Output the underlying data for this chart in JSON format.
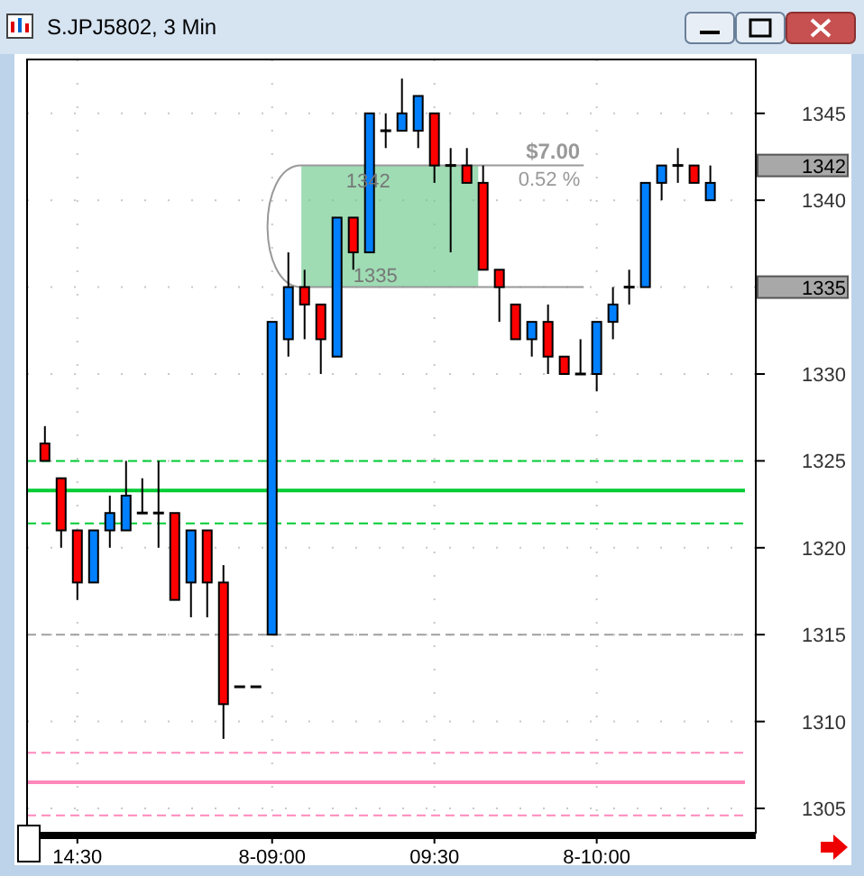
{
  "chart_data": {
    "type": "candlestick",
    "title": "S.JPJ5802, 3 Min",
    "categories": [
      null,
      null,
      "14:30",
      null,
      null,
      null,
      null,
      null,
      null,
      null,
      null,
      null,
      null,
      null,
      "8-09:00",
      null,
      null,
      null,
      null,
      null,
      null,
      null,
      null,
      null,
      "09:30",
      null,
      null,
      null,
      null,
      null,
      null,
      null,
      null,
      null,
      "8-10:00",
      null,
      null,
      null,
      null,
      null,
      null,
      null
    ],
    "ohlc": [
      [
        1326,
        1327,
        1325,
        1325
      ],
      [
        1324,
        1324,
        1320,
        1321
      ],
      [
        1321,
        1321,
        1317,
        1318
      ],
      [
        1318,
        1321,
        1318,
        1321
      ],
      [
        1321,
        1323,
        1320,
        1322
      ],
      [
        1321,
        1325,
        1321,
        1323
      ],
      [
        1322,
        1324,
        1322,
        1322
      ],
      [
        1322,
        1325,
        1320,
        1322
      ],
      [
        1322,
        1322,
        1317,
        1317
      ],
      [
        1318,
        1321,
        1316,
        1321
      ],
      [
        1321,
        1321,
        1316,
        1318
      ],
      [
        1318,
        1319,
        1309,
        1311
      ],
      [
        1312,
        1312,
        1312,
        1312
      ],
      [
        1312,
        1312,
        1312,
        1312
      ],
      [
        1315,
        1333,
        1315,
        1333
      ],
      [
        1332,
        1337,
        1331,
        1335
      ],
      [
        1335,
        1336,
        1332,
        1334
      ],
      [
        1334,
        1334,
        1330,
        1332
      ],
      [
        1331,
        1339,
        1331,
        1339
      ],
      [
        1339,
        1339,
        1336,
        1337
      ],
      [
        1337,
        1345,
        1337,
        1345
      ],
      [
        1344,
        1345,
        1343,
        1344
      ],
      [
        1344,
        1347,
        1344,
        1345
      ],
      [
        1344,
        1346,
        1343,
        1346
      ],
      [
        1345,
        1345,
        1341,
        1342
      ],
      [
        1342,
        1343,
        1337,
        1342
      ],
      [
        1342,
        1343,
        1341,
        1341
      ],
      [
        1341,
        1342,
        1336,
        1336
      ],
      [
        1336,
        1336,
        1333,
        1335
      ],
      [
        1334,
        1334,
        1332,
        1332
      ],
      [
        1332,
        1333,
        1331,
        1333
      ],
      [
        1333,
        1334,
        1330,
        1331
      ],
      [
        1331,
        1331,
        1330,
        1330
      ],
      [
        1330,
        1332,
        1330,
        1330
      ],
      [
        1330,
        1333,
        1329,
        1333
      ],
      [
        1333,
        1335,
        1332,
        1334
      ],
      [
        1335,
        1336,
        1334,
        1335
      ],
      [
        1335,
        1341,
        1335,
        1341
      ],
      [
        1341,
        1342,
        1340,
        1342
      ],
      [
        1342,
        1343,
        1341,
        1342
      ],
      [
        1342,
        1342,
        1341,
        1341
      ],
      [
        1340,
        1342,
        1340,
        1341
      ]
    ],
    "colors": [
      "#ff0000",
      "#ff0000",
      "#ff0000",
      "#0080ff",
      "#0080ff",
      "#0080ff",
      "#000000",
      "#000000",
      "#ff0000",
      "#0080ff",
      "#ff0000",
      "#ff0000",
      "#000000",
      "#000000",
      "#0080ff",
      "#0080ff",
      "#ff0000",
      "#ff0000",
      "#0080ff",
      "#ff0000",
      "#0080ff",
      "#000000",
      "#0080ff",
      "#0080ff",
      "#ff0000",
      "#000000",
      "#ff0000",
      "#ff0000",
      "#ff0000",
      "#ff0000",
      "#0080ff",
      "#ff0000",
      "#ff0000",
      "#000000",
      "#0080ff",
      "#0080ff",
      "#000000",
      "#0080ff",
      "#0080ff",
      "#000000",
      "#ff0000",
      "#0080ff"
    ],
    "ylim": [
      1303.6,
      1348.1
    ],
    "yticks": [
      1305,
      1310,
      1315,
      1320,
      1325,
      1330,
      1335,
      1340,
      1345
    ],
    "grid": true,
    "ref_lines": [
      {
        "axis": "y",
        "value": 1325,
        "color": "#00cc33",
        "line_style": "dashed"
      },
      {
        "axis": "y",
        "value": 1323.3,
        "color": "#00cc33",
        "line_style": "solid"
      },
      {
        "axis": "y",
        "value": 1321.4,
        "color": "#00cc33",
        "line_style": "dashed"
      },
      {
        "axis": "y",
        "value": 1315,
        "color": "#a0a0a0",
        "line_style": "dashed"
      },
      {
        "axis": "y",
        "value": 1308.2,
        "color": "#ff88bb",
        "line_style": "dashed"
      },
      {
        "axis": "y",
        "value": 1306.5,
        "color": "#ff88bb",
        "line_style": "solid"
      },
      {
        "axis": "y",
        "value": 1304.6,
        "color": "#ff88bb",
        "line_style": "dashed"
      }
    ],
    "bands": [
      {
        "axis": "y",
        "from": 1335,
        "to": 1342,
        "color": "#6cc98c"
      }
    ],
    "annotations": [
      "1342",
      "1335",
      "$7.00",
      "0.52 %",
      "1342",
      "1335"
    ]
  }
}
